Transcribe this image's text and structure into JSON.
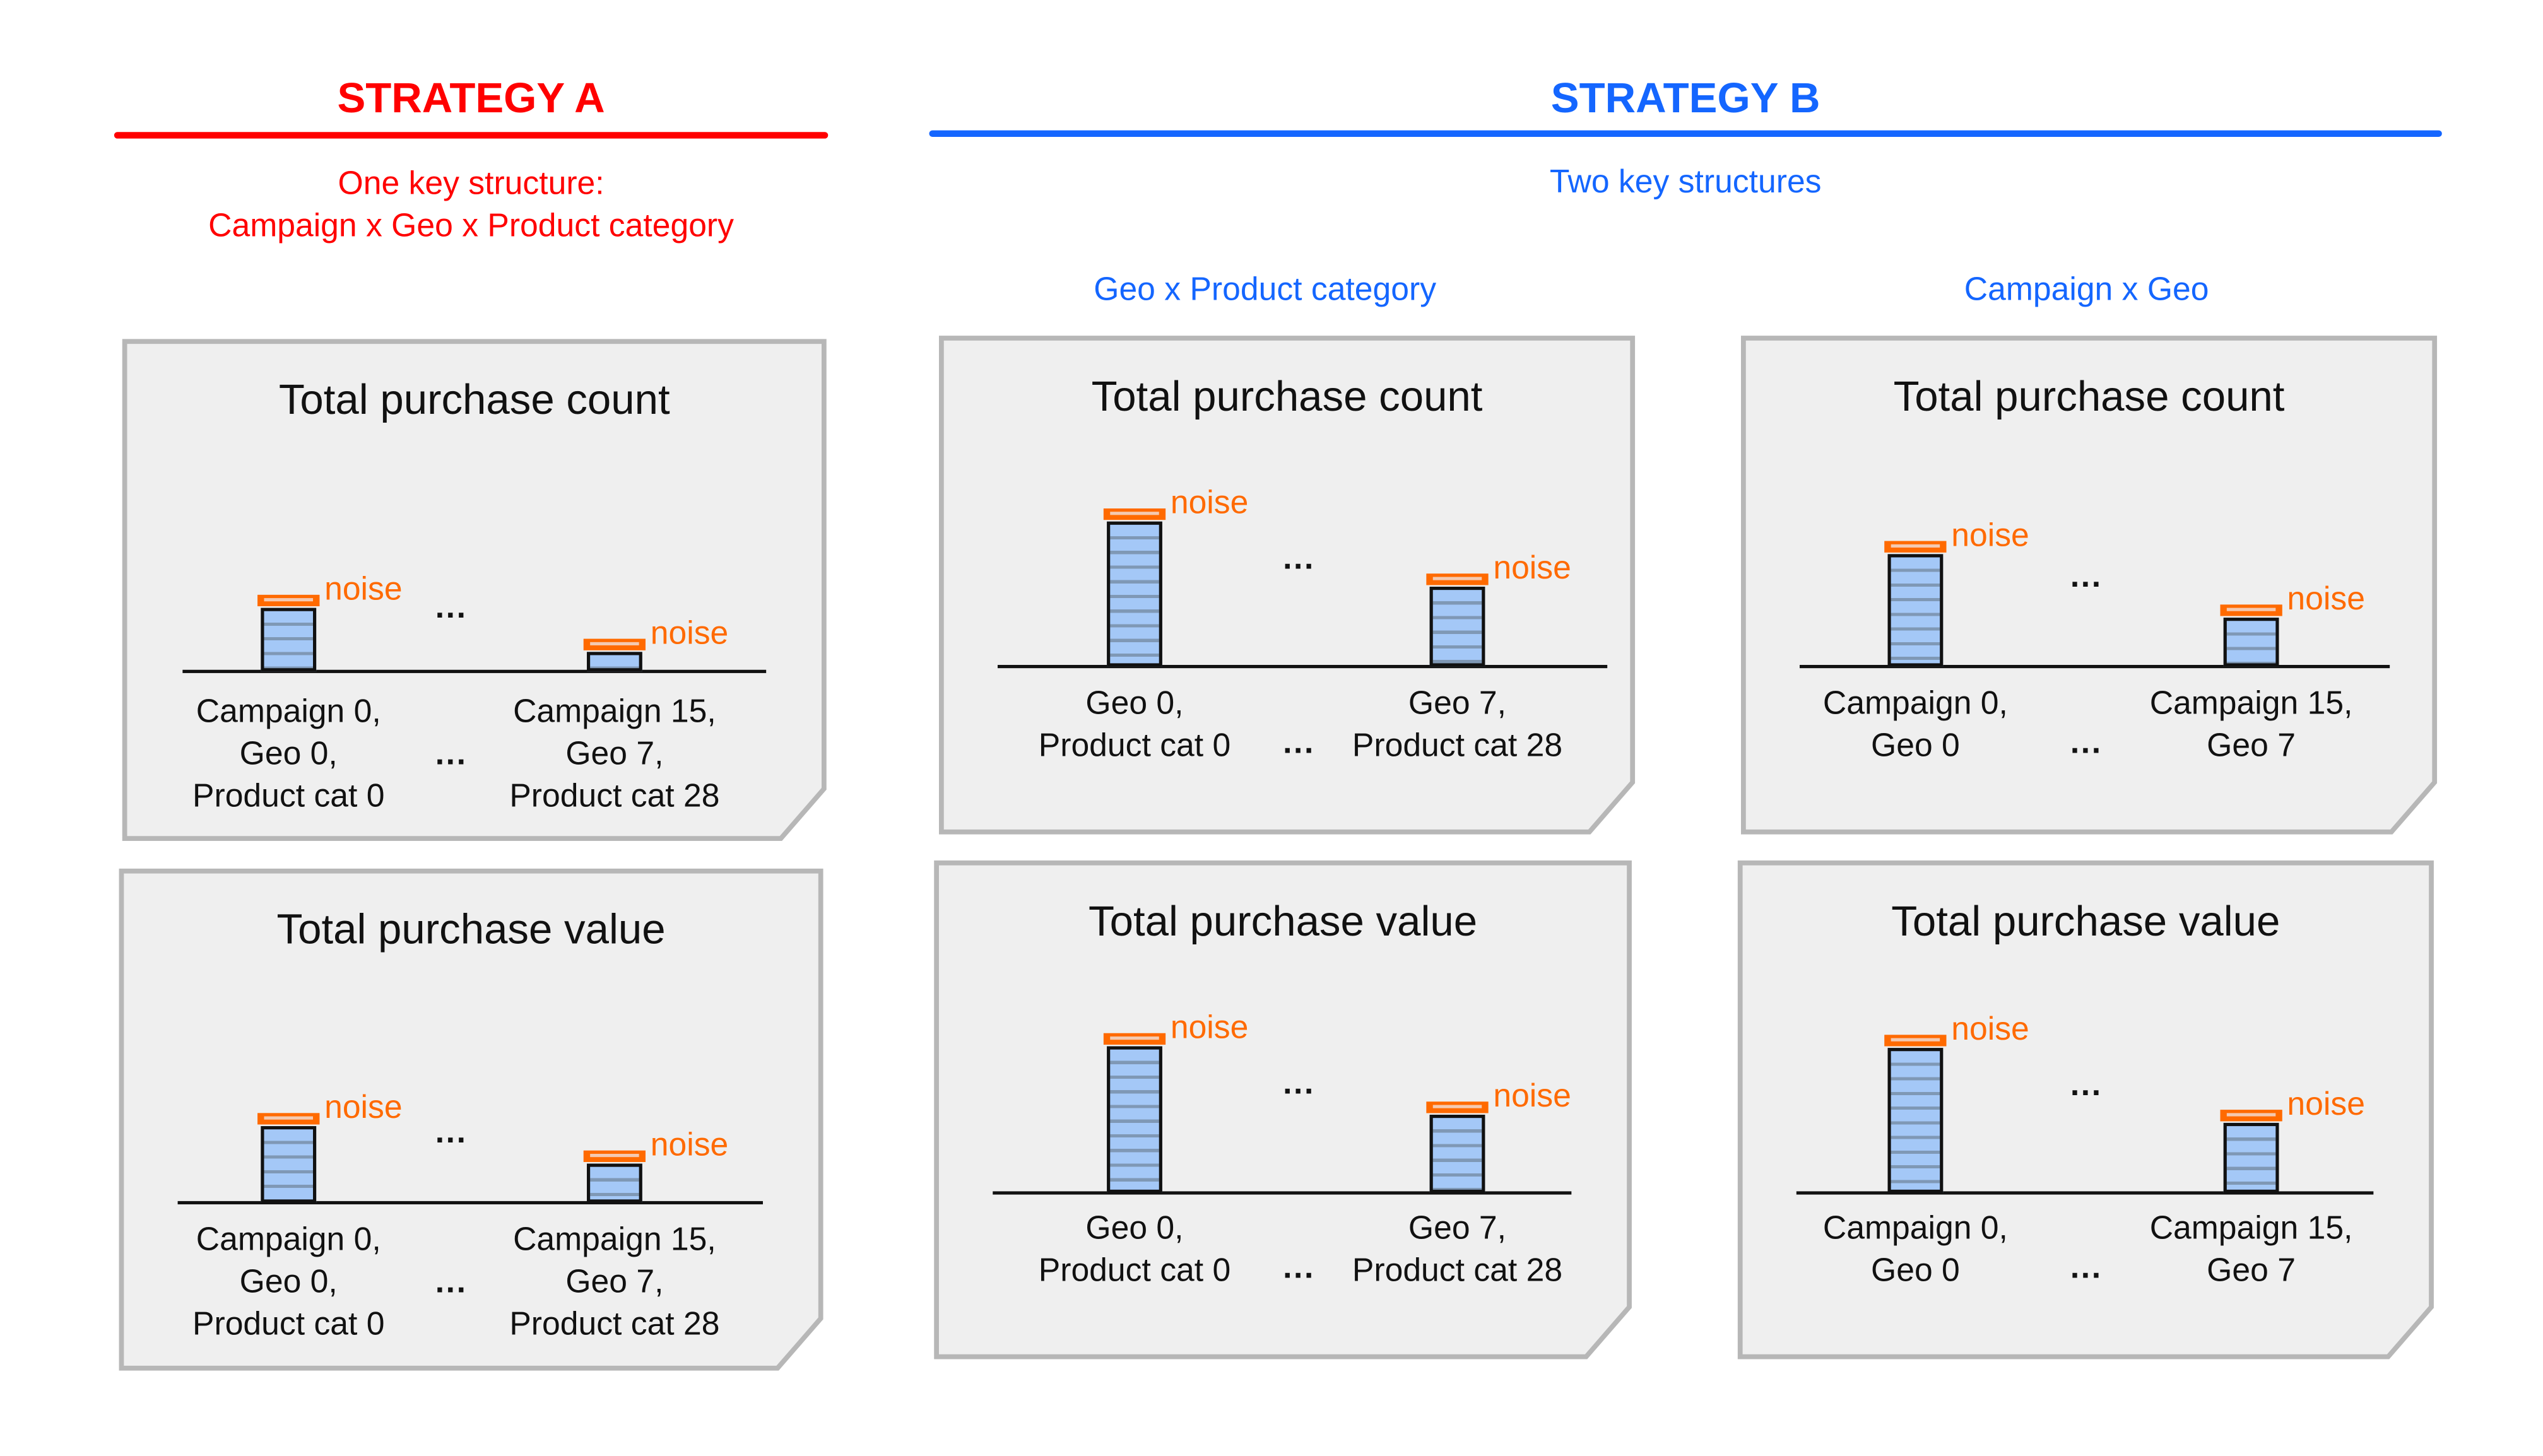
{
  "strategy_a": {
    "heading": "STRATEGY A",
    "color": "#ff0000",
    "subtitle_lines": [
      "One key structure:",
      "Campaign x Geo x Product category"
    ],
    "cards": [
      {
        "title": "Total purchase count",
        "noise_label": "noise",
        "ellipsis": "...",
        "bars": [
          {
            "label_lines": [
              "Campaign 0,",
              "Geo 0,",
              "Product cat 0"
            ]
          },
          {
            "label_lines": [
              "Campaign 15,",
              "Geo 7,",
              "Product cat 28"
            ]
          }
        ]
      },
      {
        "title": "Total purchase value",
        "noise_label": "noise",
        "ellipsis": "...",
        "bars": [
          {
            "label_lines": [
              "Campaign 0,",
              "Geo 0,",
              "Product cat 0"
            ]
          },
          {
            "label_lines": [
              "Campaign 15,",
              "Geo 7,",
              "Product cat 28"
            ]
          }
        ]
      }
    ]
  },
  "strategy_b": {
    "heading": "STRATEGY B",
    "color": "#1466ff",
    "subtitle": "Two key structures",
    "columns": [
      {
        "label": "Geo x Product category",
        "cards": [
          {
            "title": "Total purchase count",
            "noise_label": "noise",
            "ellipsis": "...",
            "bars": [
              {
                "label_lines": [
                  "Geo 0,",
                  "Product cat 0"
                ]
              },
              {
                "label_lines": [
                  "Geo 7,",
                  "Product cat 28"
                ]
              }
            ]
          },
          {
            "title": "Total purchase value",
            "noise_label": "noise",
            "ellipsis": "...",
            "bars": [
              {
                "label_lines": [
                  "Geo 0,",
                  "Product cat 0"
                ]
              },
              {
                "label_lines": [
                  "Geo 7,",
                  "Product cat 28"
                ]
              }
            ]
          }
        ]
      },
      {
        "label": "Campaign x Geo",
        "cards": [
          {
            "title": "Total purchase count",
            "noise_label": "noise",
            "ellipsis": "...",
            "bars": [
              {
                "label_lines": [
                  "Campaign 0,",
                  "Geo 0"
                ]
              },
              {
                "label_lines": [
                  "Campaign 15,",
                  "Geo 7"
                ]
              }
            ]
          },
          {
            "title": "Total purchase value",
            "noise_label": "noise",
            "ellipsis": "...",
            "bars": [
              {
                "label_lines": [
                  "Campaign 0,",
                  "Geo 0"
                ]
              },
              {
                "label_lines": [
                  "Campaign 15,",
                  "Geo 7"
                ]
              }
            ]
          }
        ]
      }
    ]
  },
  "colors": {
    "card_fill": "#efefef",
    "card_border": "#b7b7b7",
    "bar_fill": "#a4c8f7",
    "noise": "#ff6a00"
  }
}
